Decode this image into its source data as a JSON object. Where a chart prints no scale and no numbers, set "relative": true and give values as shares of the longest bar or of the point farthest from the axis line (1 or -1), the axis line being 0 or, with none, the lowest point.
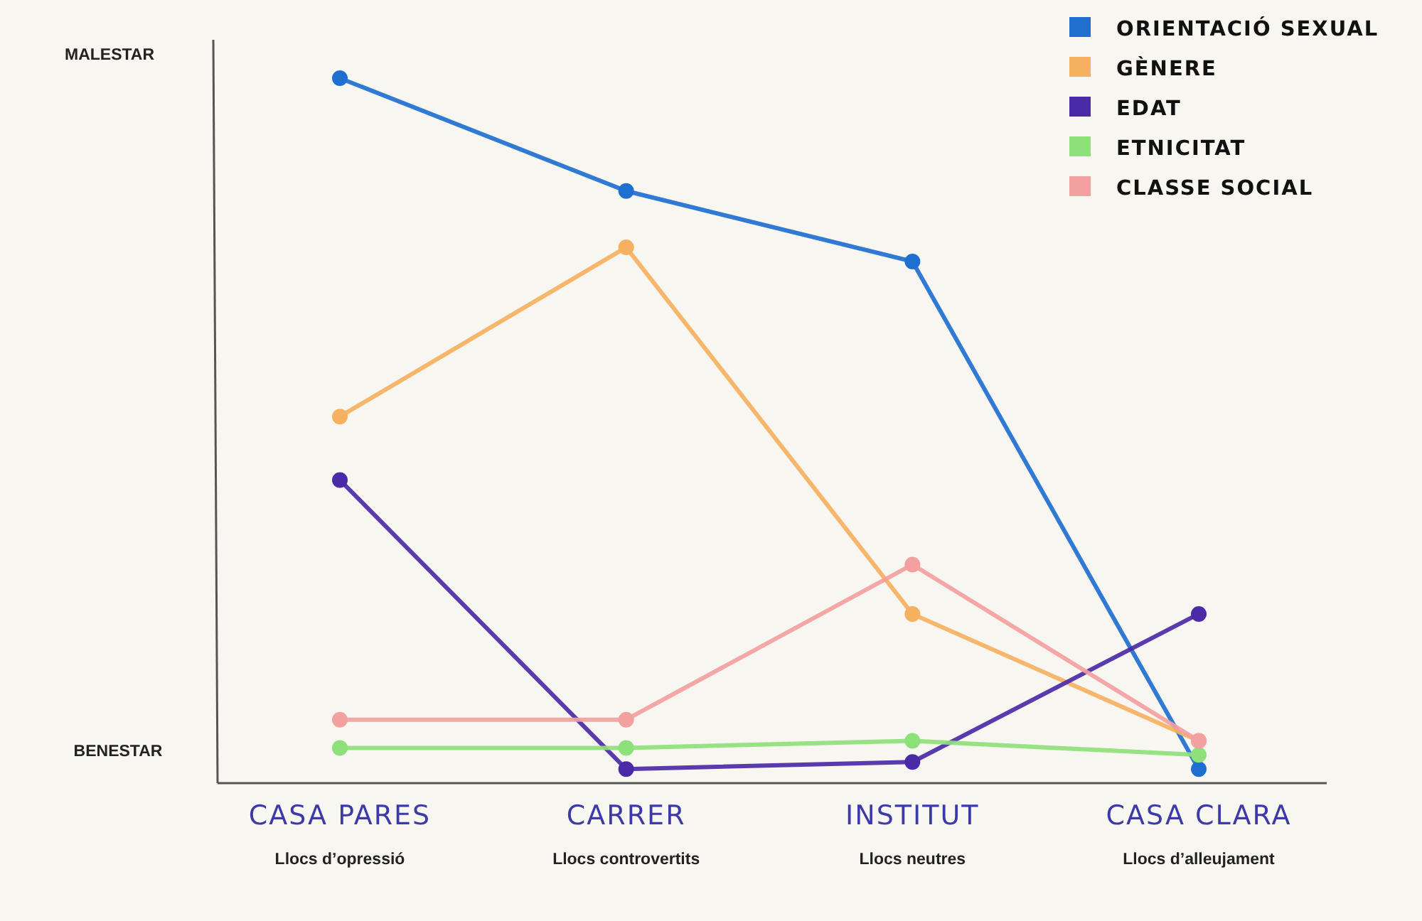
{
  "chart_data": {
    "type": "line",
    "relative": true,
    "marker": "circle",
    "line_style": "solid",
    "legend": "top right",
    "categories": [
      "CASA PARES\nLlocs d’opressió",
      "CARRER\nLlocs controvertits",
      "INSTITUT\nLlocs neutres",
      "CASA CLARA\nLlocs d’alleujament"
    ],
    "series": [
      {
        "name": "ORIENTACIÓ SEXUAL",
        "color": "#1f6fd1",
        "values": [
          1,
          0.84,
          0.74,
          0.02
        ]
      },
      {
        "name": "GÈNERE",
        "color": "#f5b060",
        "values": [
          0.52,
          0.76,
          0.24,
          0.06
        ]
      },
      {
        "name": "EDAT",
        "color": "#4b2aa8",
        "values": [
          0.43,
          0.02,
          0.03,
          0.24
        ]
      },
      {
        "name": "ETNICITAT",
        "color": "#8ee07a",
        "values": [
          0.05,
          0.05,
          0.06,
          0.04
        ]
      },
      {
        "name": "CLASSE SOCIAL",
        "color": "#f2a0a0",
        "values": [
          0.09,
          0.09,
          0.31,
          0.06
        ]
      }
    ],
    "annotations": [
      "MALESTAR",
      "BENESTAR"
    ]
  }
}
